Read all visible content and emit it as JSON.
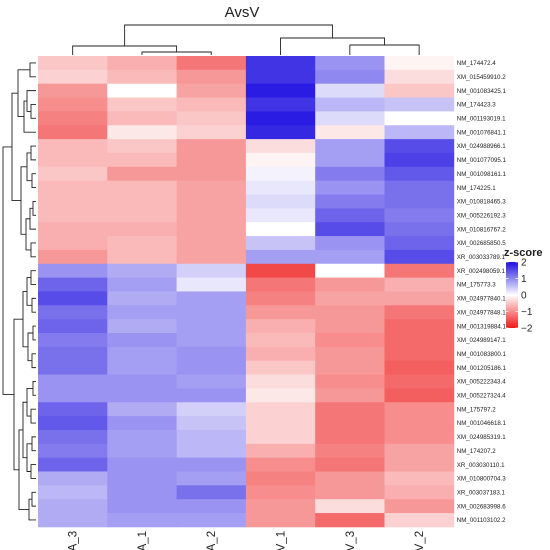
{
  "chart_data": {
    "type": "heatmap",
    "title": "AvsV",
    "columns": [
      "A_3",
      "A_1",
      "A_2",
      "V_1",
      "V_3",
      "V_2"
    ],
    "rows": [
      "NM_174472.4",
      "XM_015459910.2",
      "NM_001083425.1",
      "NM_174423.3",
      "NM_001193019.1",
      "NM_001076841.1",
      "XM_024988966.1",
      "NM_001077095.1",
      "NM_001098161.1",
      "NM_174225.1",
      "XM_010818465.3",
      "XM_005226192.3",
      "XM_010816767.2",
      "XM_002685850.5",
      "XR_003033789.1",
      "XR_002498059.1",
      "NM_175773.3",
      "XM_024977840.1",
      "XM_024977848.1",
      "NM_001319884.1",
      "XM_024989147.1",
      "NM_001083800.1",
      "NM_001205186.1",
      "XM_005222343.4",
      "XM_005227324.4",
      "NM_175797.2",
      "NM_001046618.1",
      "XM_024985319.1",
      "NM_174207.2",
      "XR_003030110.1",
      "XM_010800704.3",
      "XR_003037183.1",
      "XM_002683998.6",
      "NM_001103102.2"
    ],
    "values": [
      [
        -0.5,
        -0.7,
        -1.2,
        1.7,
        0.9,
        -0.1
      ],
      [
        -0.4,
        -0.6,
        -0.9,
        1.7,
        1.0,
        -0.3
      ],
      [
        -0.9,
        0.0,
        -0.8,
        1.9,
        0.3,
        -0.5
      ],
      [
        -1.0,
        -0.5,
        -0.6,
        1.7,
        0.6,
        0.5
      ],
      [
        -1.1,
        -0.6,
        -0.5,
        1.9,
        0.3,
        0.0
      ],
      [
        -1.2,
        -0.2,
        -0.4,
        1.8,
        -0.2,
        0.6
      ],
      [
        -0.6,
        -0.5,
        -0.9,
        -0.3,
        0.8,
        1.5
      ],
      [
        -0.6,
        -0.6,
        -0.9,
        -0.1,
        0.8,
        1.6
      ],
      [
        -0.5,
        -0.9,
        -0.9,
        0.1,
        1.1,
        1.4
      ],
      [
        -0.6,
        -0.6,
        -0.8,
        0.2,
        0.9,
        1.2
      ],
      [
        -0.6,
        -0.6,
        -0.8,
        0.3,
        1.1,
        1.2
      ],
      [
        -0.6,
        -0.6,
        -0.8,
        0.2,
        1.3,
        1.1
      ],
      [
        -0.7,
        -0.7,
        -0.8,
        0.0,
        1.5,
        1.2
      ],
      [
        -0.7,
        -0.6,
        -0.8,
        0.5,
        0.9,
        1.3
      ],
      [
        -0.9,
        -0.6,
        -0.8,
        0.8,
        0.8,
        1.5
      ],
      [
        0.9,
        0.7,
        0.4,
        -1.6,
        0.0,
        -1.2
      ],
      [
        1.3,
        0.8,
        0.2,
        -1.2,
        -0.9,
        -0.7
      ],
      [
        1.5,
        0.7,
        0.8,
        -1.1,
        -0.8,
        -0.8
      ],
      [
        1.2,
        0.8,
        0.8,
        -0.9,
        -0.9,
        -1.2
      ],
      [
        1.3,
        0.7,
        0.8,
        -0.7,
        -0.9,
        -1.3
      ],
      [
        1.1,
        0.9,
        0.8,
        -0.6,
        -1.0,
        -1.3
      ],
      [
        1.2,
        0.8,
        0.9,
        -0.7,
        -0.9,
        -1.3
      ],
      [
        1.2,
        0.8,
        0.9,
        -0.5,
        -0.9,
        -1.4
      ],
      [
        0.9,
        0.9,
        0.8,
        -0.3,
        -1.0,
        -1.3
      ],
      [
        0.9,
        0.9,
        0.9,
        -0.2,
        -0.9,
        -1.4
      ],
      [
        1.3,
        0.7,
        0.4,
        -0.4,
        -1.2,
        -1.0
      ],
      [
        1.4,
        0.9,
        0.5,
        -0.4,
        -1.2,
        -1.0
      ],
      [
        1.2,
        0.8,
        0.6,
        -0.4,
        -1.2,
        -1.0
      ],
      [
        1.1,
        0.8,
        0.6,
        -0.7,
        -1.1,
        -0.8
      ],
      [
        1.3,
        0.9,
        0.9,
        -1.0,
        -1.2,
        -0.8
      ],
      [
        0.7,
        0.9,
        0.8,
        -1.1,
        -0.9,
        -0.6
      ],
      [
        0.6,
        0.9,
        1.2,
        -1.0,
        -0.9,
        -0.7
      ],
      [
        0.7,
        0.9,
        0.9,
        -0.9,
        -0.3,
        -0.9
      ],
      [
        0.7,
        0.8,
        0.8,
        -0.9,
        -1.3,
        -0.4
      ]
    ],
    "legend": {
      "title": "z-score",
      "ticks": [
        2,
        1,
        0,
        -1,
        -2
      ],
      "position": "right"
    },
    "color_scale": {
      "low": "#ee1a1a",
      "mid": "#ffffff",
      "high": "#1f10e0",
      "range": [
        -2,
        2
      ]
    },
    "dendrograms": {
      "rows": true,
      "columns": true
    }
  }
}
